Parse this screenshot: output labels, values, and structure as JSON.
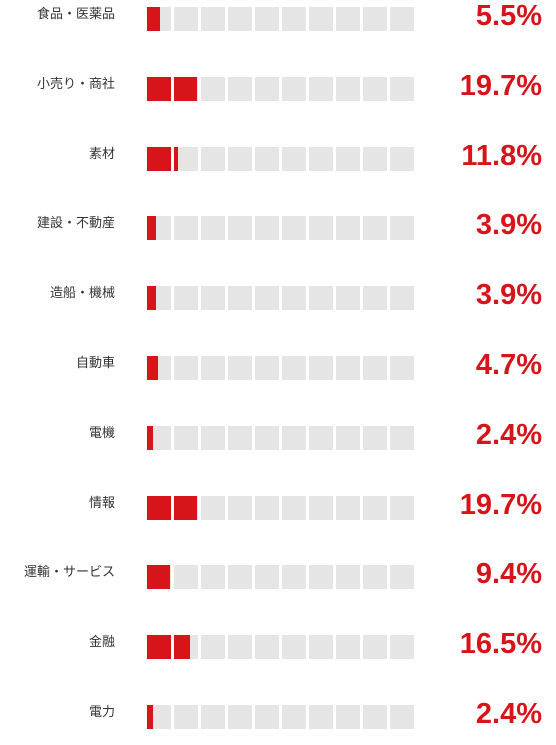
{
  "chart_data": {
    "type": "bar",
    "title": "",
    "unit": "%",
    "cells_per_row": 10,
    "percent_per_cell": 10,
    "fill_color": "#d7141a",
    "empty_color": "#e5e5e5",
    "value_color": "#d7141a",
    "label_color": "#333333",
    "rows": [
      {
        "category": "食品・医薬品",
        "value": 5.5,
        "value_label": "5.5%"
      },
      {
        "category": "小売り・商社",
        "value": 19.7,
        "value_label": "19.7%"
      },
      {
        "category": "素材",
        "value": 11.8,
        "value_label": "11.8%"
      },
      {
        "category": "建設・不動産",
        "value": 3.9,
        "value_label": "3.9%"
      },
      {
        "category": "造船・機械",
        "value": 3.9,
        "value_label": "3.9%"
      },
      {
        "category": "自動車",
        "value": 4.7,
        "value_label": "4.7%"
      },
      {
        "category": "電機",
        "value": 2.4,
        "value_label": "2.4%"
      },
      {
        "category": "情報",
        "value": 19.7,
        "value_label": "19.7%"
      },
      {
        "category": "運輸・サービス",
        "value": 9.4,
        "value_label": "9.4%"
      },
      {
        "category": "金融",
        "value": 16.5,
        "value_label": "16.5%"
      },
      {
        "category": "電力",
        "value": 2.4,
        "value_label": "2.4%"
      }
    ]
  }
}
